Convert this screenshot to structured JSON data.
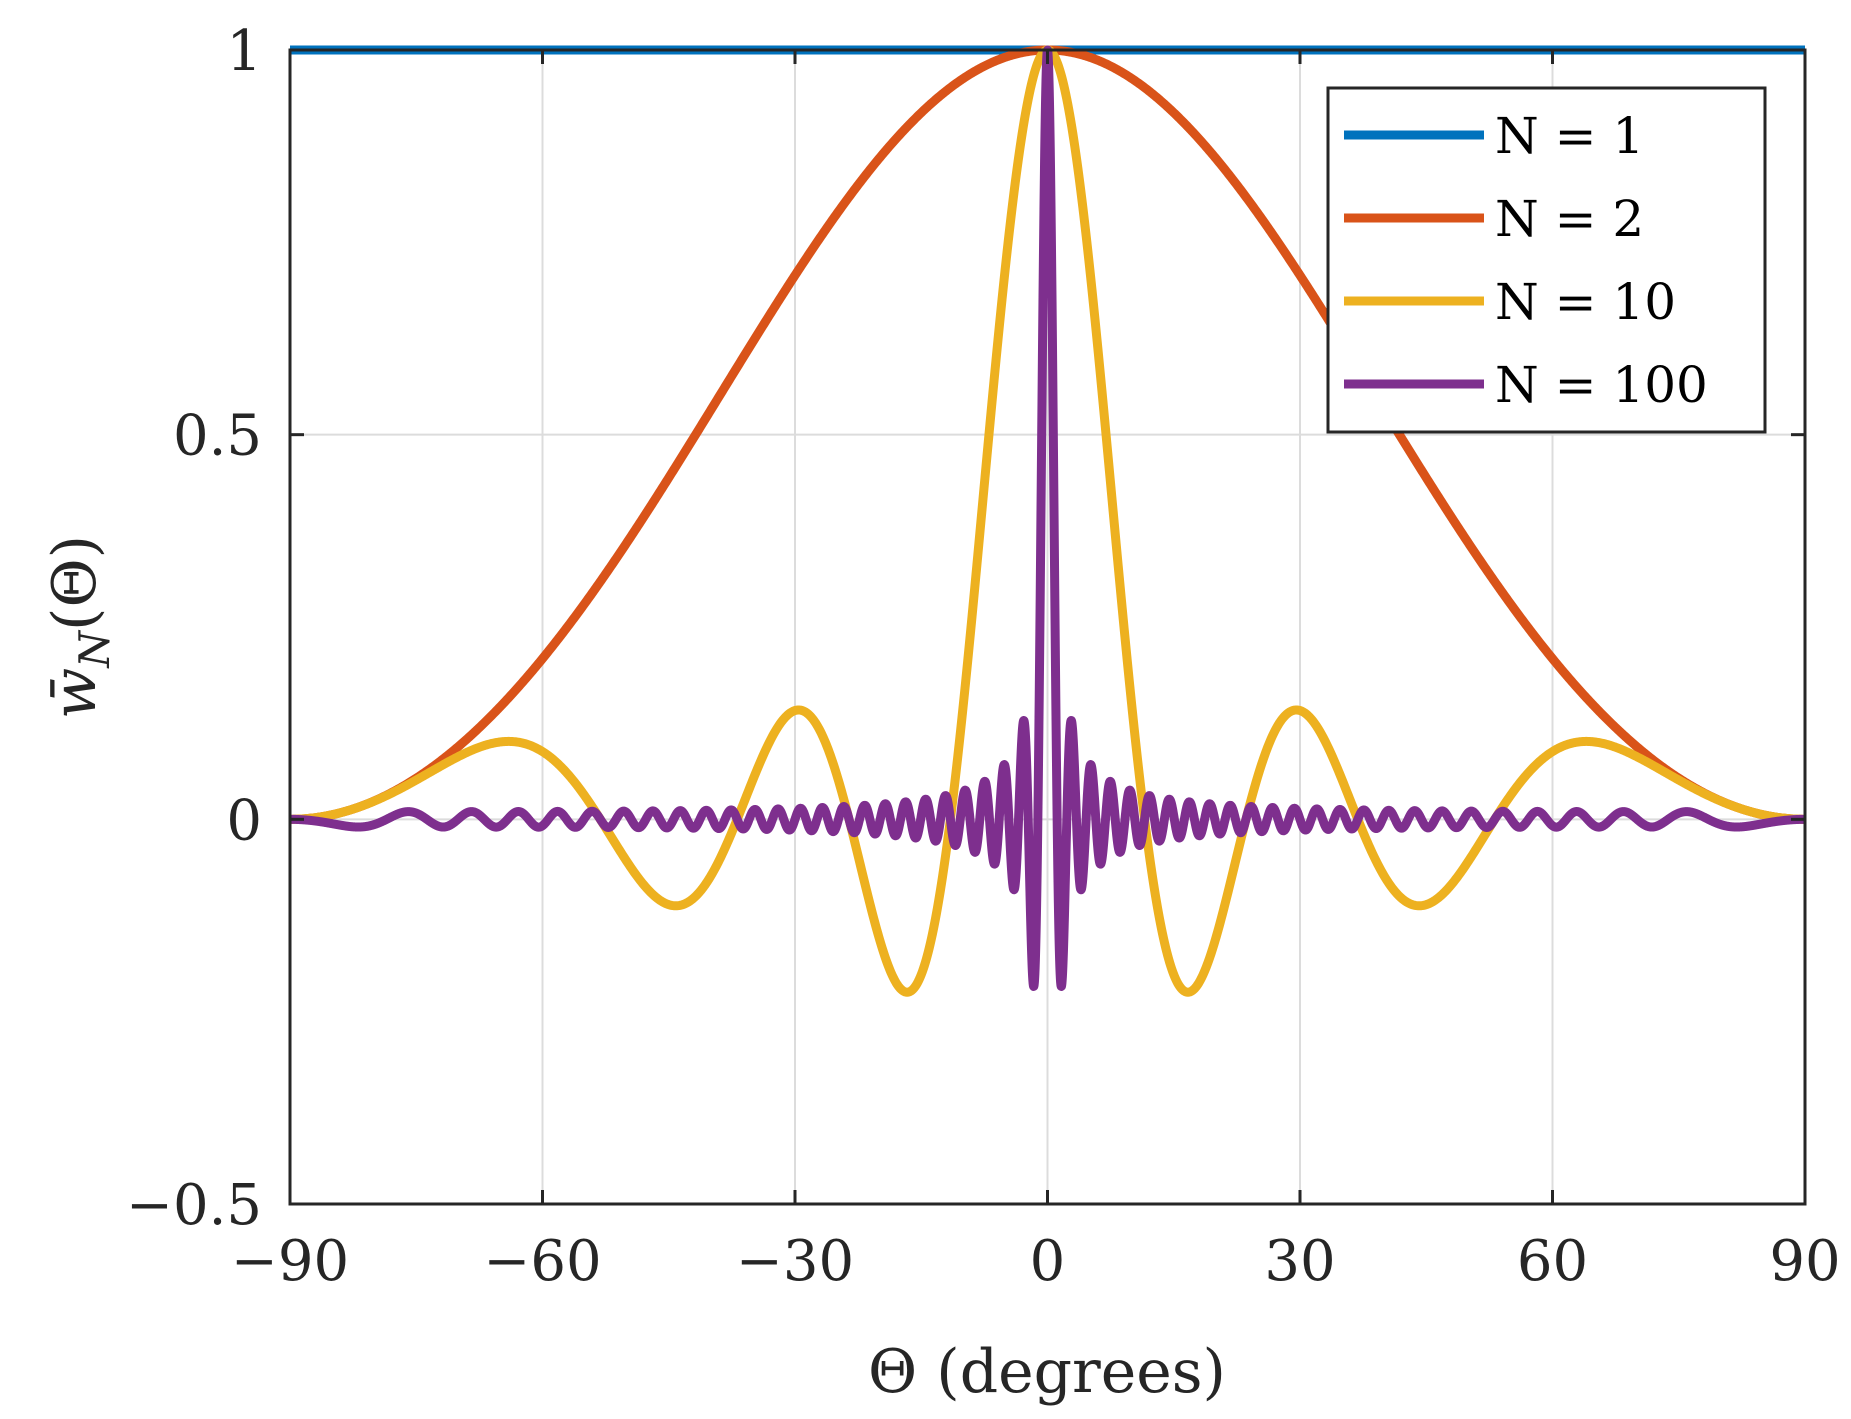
{
  "chart_data": {
    "type": "line",
    "xlabel": "Θ (degrees)",
    "ylabel": "w̄_N(Θ)",
    "ylabel_main": "w̄",
    "ylabel_sub": "N",
    "ylabel_args": "(Θ)",
    "xlim": [
      -90,
      90
    ],
    "ylim": [
      -0.5,
      1
    ],
    "xticks": [
      -90,
      -60,
      -30,
      0,
      30,
      60,
      90
    ],
    "xtick_labels": [
      "−90",
      "−60",
      "−30",
      "0",
      "30",
      "60",
      "90"
    ],
    "yticks": [
      -0.5,
      0,
      0.5,
      1
    ],
    "ytick_labels": [
      "−0.5",
      "0",
      "0.5",
      "1"
    ],
    "grid": true,
    "legend_position": "top-right",
    "series": [
      {
        "name": "N = 1",
        "N": 1,
        "color": "#0072BD"
      },
      {
        "name": "N = 2",
        "N": 2,
        "color": "#D95319"
      },
      {
        "name": "N = 10",
        "N": 10,
        "color": "#EDB120"
      },
      {
        "name": "N = 100",
        "N": 100,
        "color": "#7E2F8E"
      }
    ],
    "formula": "sin(N*pi*sin(theta)/2) / (N*sin(pi*sin(theta)/2))"
  }
}
